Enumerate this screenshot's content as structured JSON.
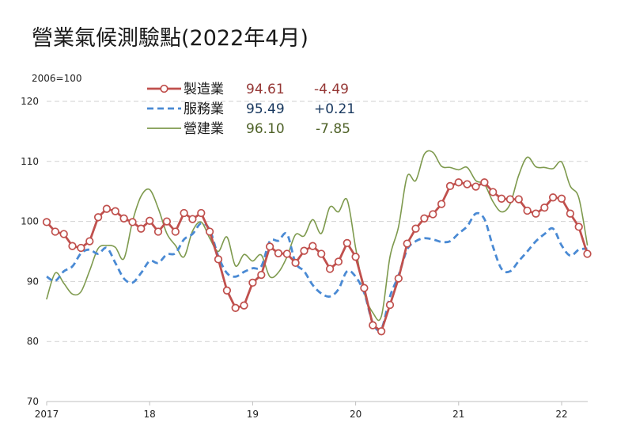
{
  "chart_data": {
    "type": "line",
    "title": "營業氣候測驗點(2022年4月)",
    "y_unit": "2006=100",
    "xlabel": "",
    "ylabel": "",
    "ylim": [
      70,
      120
    ],
    "yticks": [
      70,
      80,
      90,
      100,
      110,
      120
    ],
    "grid": true,
    "legend": "top-left",
    "xticks": [
      {
        "label": "2017",
        "at": "2017-01"
      },
      {
        "label": "18",
        "at": "2018-01"
      },
      {
        "label": "19",
        "at": "2019-01"
      },
      {
        "label": "20",
        "at": "2020-01"
      },
      {
        "label": "21",
        "at": "2021-01"
      },
      {
        "label": "22",
        "at": "2022-01"
      }
    ],
    "x": [
      "2017-01",
      "2017-02",
      "2017-03",
      "2017-04",
      "2017-05",
      "2017-06",
      "2017-07",
      "2017-08",
      "2017-09",
      "2017-10",
      "2017-11",
      "2017-12",
      "2018-01",
      "2018-02",
      "2018-03",
      "2018-04",
      "2018-05",
      "2018-06",
      "2018-07",
      "2018-08",
      "2018-09",
      "2018-10",
      "2018-11",
      "2018-12",
      "2019-01",
      "2019-02",
      "2019-03",
      "2019-04",
      "2019-05",
      "2019-06",
      "2019-07",
      "2019-08",
      "2019-09",
      "2019-10",
      "2019-11",
      "2019-12",
      "2020-01",
      "2020-02",
      "2020-03",
      "2020-04",
      "2020-05",
      "2020-06",
      "2020-07",
      "2020-08",
      "2020-09",
      "2020-10",
      "2020-11",
      "2020-12",
      "2021-01",
      "2021-02",
      "2021-03",
      "2021-04",
      "2021-05",
      "2021-06",
      "2021-07",
      "2021-08",
      "2021-09",
      "2021-10",
      "2021-11",
      "2021-12",
      "2022-01",
      "2022-02",
      "2022-03",
      "2022-04"
    ],
    "series": [
      {
        "name": "製造業",
        "latest": "94.61",
        "change": "-4.49",
        "color": "#C0504D",
        "value_color": "#953735",
        "line_style": "solid",
        "marker": "circle",
        "values": [
          99.9,
          98.3,
          97.9,
          95.9,
          95.6,
          96.7,
          100.7,
          102.1,
          101.7,
          100.5,
          99.9,
          98.8,
          100.1,
          98.3,
          100.0,
          98.3,
          101.4,
          100.4,
          101.4,
          98.3,
          93.7,
          88.5,
          85.6,
          86.0,
          89.8,
          91.1,
          95.8,
          94.7,
          94.6,
          93.1,
          95.1,
          95.9,
          94.6,
          92.1,
          93.3,
          96.4,
          94.1,
          88.9,
          82.7,
          81.7,
          86.1,
          90.5,
          96.3,
          98.8,
          100.5,
          101.2,
          102.9,
          105.9,
          106.5,
          106.2,
          105.8,
          106.5,
          104.9,
          103.8,
          103.7,
          103.7,
          101.8,
          101.3,
          102.3,
          104.0,
          103.8,
          101.3,
          99.1,
          94.61
        ]
      },
      {
        "name": "服務業",
        "latest": "95.49",
        "change": "+0.21",
        "color": "#4A8AD4",
        "value_color": "#17375E",
        "line_style": "dashed",
        "marker": "none",
        "values": [
          90.8,
          90.1,
          91.7,
          92.5,
          94.7,
          95.3,
          94.6,
          95.6,
          93.1,
          90.5,
          89.8,
          91.4,
          93.4,
          93.1,
          94.5,
          94.7,
          97.0,
          97.9,
          99.7,
          98.6,
          94.2,
          91.4,
          90.8,
          91.6,
          92.2,
          92.5,
          96.7,
          96.8,
          97.9,
          93.1,
          91.7,
          89.4,
          88.0,
          87.5,
          88.7,
          91.7,
          90.8,
          88.1,
          83.1,
          82.1,
          87.5,
          91.0,
          95.3,
          96.7,
          97.2,
          97.0,
          96.6,
          96.7,
          98.0,
          99.2,
          101.3,
          100.4,
          95.8,
          92.1,
          91.7,
          93.4,
          95.0,
          96.7,
          97.9,
          98.8,
          96.0,
          94.3,
          95.28,
          95.49
        ]
      },
      {
        "name": "營建業",
        "latest": "96.10",
        "change": "-7.85",
        "color": "#7E9A4E",
        "value_color": "#4F6228",
        "line_style": "solid",
        "marker": "none",
        "values": [
          87.1,
          91.4,
          89.7,
          87.9,
          88.3,
          91.8,
          95.5,
          96.0,
          95.7,
          93.8,
          100.0,
          104.2,
          105.3,
          102.2,
          98.0,
          96.0,
          94.1,
          98.4,
          99.9,
          97.2,
          95.0,
          97.4,
          92.6,
          94.5,
          93.4,
          94.4,
          90.8,
          91.5,
          94.1,
          97.8,
          97.6,
          100.3,
          98.0,
          102.4,
          101.6,
          103.6,
          95.6,
          88.1,
          84.8,
          84.2,
          94.1,
          99.1,
          107.5,
          106.8,
          111.2,
          111.5,
          109.2,
          109.0,
          108.6,
          109.0,
          106.8,
          106.2,
          103.3,
          101.6,
          102.9,
          107.7,
          110.7,
          109.1,
          109.0,
          108.8,
          109.9,
          105.9,
          103.95,
          96.1
        ]
      }
    ]
  }
}
